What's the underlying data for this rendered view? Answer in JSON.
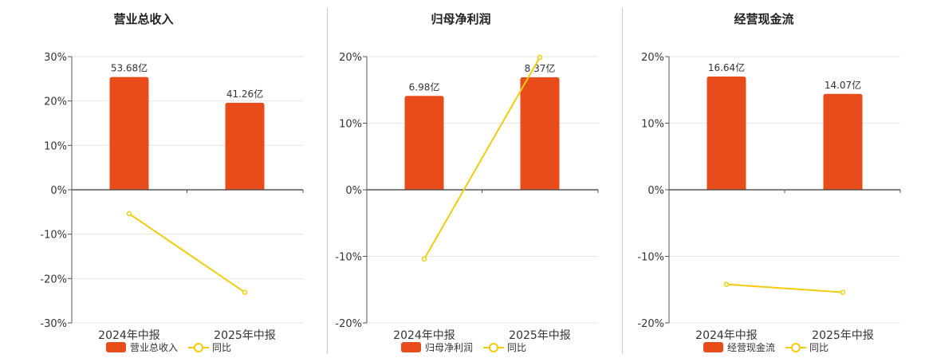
{
  "colors": {
    "bar": "#e84c1b",
    "line": "#f2cc0c",
    "axis": "#555555",
    "grid": "#e6e6e6",
    "text": "#333333"
  },
  "chart_data": [
    {
      "type": "bar+line",
      "title": "营业总收入",
      "categories": [
        "2024年中报",
        "2025年中报"
      ],
      "ylim": [
        -30,
        30
      ],
      "yticks": [
        30,
        20,
        10,
        0,
        -10,
        -20,
        -30
      ],
      "ytick_labels": [
        "30%",
        "20%",
        "10%",
        "0%",
        "-10%",
        "-20%",
        "-30%"
      ],
      "grid": true,
      "legend_position": "bottom",
      "series": [
        {
          "name": "营业总收入",
          "kind": "bar",
          "values": [
            25.4,
            19.6
          ],
          "value_labels": [
            "53.68亿",
            "41.26亿"
          ]
        },
        {
          "name": "同比",
          "kind": "line",
          "values": [
            -5.4,
            -23.1
          ]
        }
      ]
    },
    {
      "type": "bar+line",
      "title": "归母净利润",
      "categories": [
        "2024年中报",
        "2025年中报"
      ],
      "ylim": [
        -20,
        20
      ],
      "yticks": [
        20,
        10,
        0,
        -10,
        -20
      ],
      "ytick_labels": [
        "20%",
        "10%",
        "0%",
        "-10%",
        "-20%"
      ],
      "grid": true,
      "legend_position": "bottom",
      "series": [
        {
          "name": "归母净利润",
          "kind": "bar",
          "values": [
            14.1,
            16.9
          ],
          "value_labels": [
            "6.98亿",
            "8.37亿"
          ]
        },
        {
          "name": "同比",
          "kind": "line",
          "values": [
            -10.4,
            19.9
          ]
        }
      ]
    },
    {
      "type": "bar+line",
      "title": "经营现金流",
      "categories": [
        "2024年中报",
        "2025年中报"
      ],
      "ylim": [
        -20,
        20
      ],
      "yticks": [
        20,
        10,
        0,
        -10,
        -20
      ],
      "ytick_labels": [
        "20%",
        "10%",
        "0%",
        "-10%",
        "-20%"
      ],
      "grid": true,
      "legend_position": "bottom",
      "series": [
        {
          "name": "经营现金流",
          "kind": "bar",
          "values": [
            17.0,
            14.4
          ],
          "value_labels": [
            "16.64亿",
            "14.07亿"
          ]
        },
        {
          "name": "同比",
          "kind": "line",
          "values": [
            -14.2,
            -15.4
          ]
        }
      ]
    }
  ]
}
